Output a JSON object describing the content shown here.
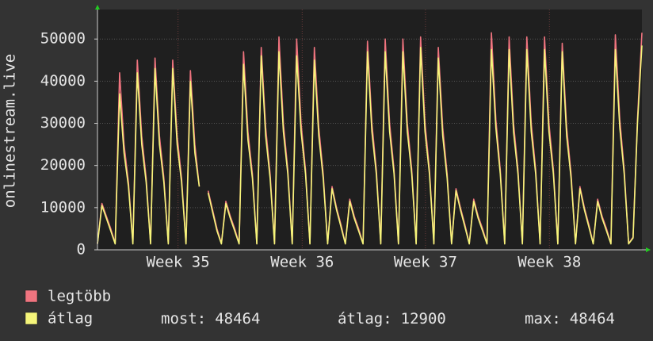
{
  "chart_data": {
    "type": "line",
    "y_label": "onlinestream.live",
    "ylim": [
      0,
      57000
    ],
    "yticks": [
      0,
      10000,
      20000,
      30000,
      40000,
      50000
    ],
    "xlim": [
      0,
      123
    ],
    "xticks": [
      {
        "value": 18.2,
        "label": "Week 35"
      },
      {
        "value": 46.25,
        "label": "Week 36"
      },
      {
        "value": 74.1,
        "label": "Week 37"
      },
      {
        "value": 102.1,
        "label": "Week 38"
      }
    ],
    "grid": true,
    "series": [
      {
        "name": "legtöbb",
        "color": "#f0747f",
        "values": [
          1500,
          11000,
          8000,
          5000,
          1500,
          42000,
          25000,
          16000,
          1500,
          45000,
          27000,
          17000,
          1500,
          45500,
          27000,
          17000,
          1500,
          45000,
          27000,
          17000,
          1500,
          42500,
          25000,
          15000,
          null,
          14000,
          9500,
          5000,
          1500,
          11500,
          8000,
          5000,
          1500,
          47000,
          28000,
          18000,
          1500,
          48000,
          29000,
          18000,
          1500,
          50500,
          30000,
          19000,
          1500,
          50000,
          30000,
          19000,
          1500,
          48000,
          29000,
          18000,
          1500,
          15000,
          10000,
          6000,
          1500,
          12000,
          8000,
          5000,
          1500,
          49500,
          30000,
          19000,
          1500,
          50000,
          30000,
          19000,
          1500,
          50000,
          30000,
          19000,
          1500,
          50500,
          30000,
          19000,
          1500,
          48000,
          29000,
          18000,
          1500,
          14500,
          10000,
          6000,
          1500,
          12000,
          8000,
          5000,
          1500,
          51500,
          31000,
          19000,
          1500,
          50500,
          30000,
          19000,
          1500,
          50500,
          30000,
          19000,
          1500,
          50500,
          30000,
          19000,
          1500,
          49000,
          29000,
          18000,
          1500,
          15000,
          10000,
          6000,
          1500,
          12000,
          8000,
          5000,
          1500,
          51000,
          31000,
          19000,
          1500,
          3000,
          31000,
          51500
        ]
      },
      {
        "name": "átlag",
        "color": "#f5f57a",
        "values": [
          1400,
          10500,
          7500,
          4500,
          1400,
          37000,
          23000,
          15000,
          1400,
          42000,
          25000,
          16000,
          1400,
          43000,
          25000,
          16000,
          1400,
          43000,
          25000,
          16000,
          1400,
          40000,
          23000,
          15000,
          null,
          13500,
          9000,
          4500,
          1400,
          11000,
          7500,
          4500,
          1400,
          44000,
          26000,
          17000,
          1400,
          46000,
          27000,
          17000,
          1400,
          47000,
          28000,
          18000,
          1400,
          46000,
          28000,
          18000,
          1400,
          45000,
          27000,
          17000,
          1400,
          14500,
          9500,
          5500,
          1400,
          11500,
          7500,
          4500,
          1400,
          47000,
          28000,
          18000,
          1400,
          47000,
          28000,
          18000,
          1400,
          47000,
          28000,
          18000,
          1400,
          48000,
          28000,
          18000,
          1400,
          45500,
          27000,
          17000,
          1400,
          14000,
          9500,
          5500,
          1400,
          11500,
          7500,
          4500,
          1400,
          47500,
          29000,
          18000,
          1400,
          47500,
          28000,
          18000,
          1400,
          47500,
          28000,
          18000,
          1400,
          47500,
          28000,
          18000,
          1400,
          47000,
          27000,
          17000,
          1400,
          14500,
          9500,
          5500,
          1400,
          11500,
          7500,
          4500,
          1400,
          47500,
          29000,
          18000,
          1400,
          2800,
          30000,
          48464
        ]
      }
    ],
    "stats": [
      {
        "label": "most:",
        "value": 48464
      },
      {
        "label": "átlag:",
        "value": 12900
      },
      {
        "label": "max:",
        "value": 48464
      }
    ]
  }
}
